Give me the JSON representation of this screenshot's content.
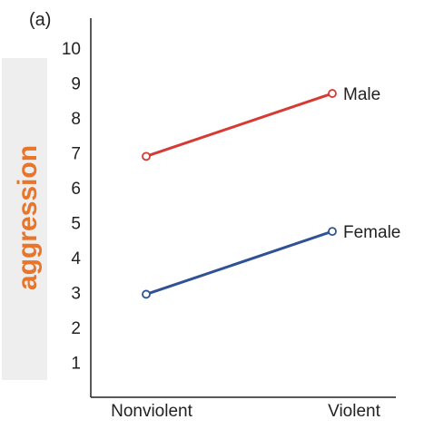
{
  "panel_label": "(a)",
  "chart_data": {
    "type": "line",
    "ylabel": "aggression",
    "xlabel": "",
    "categories": [
      "Nonviolent",
      "Violent"
    ],
    "ylim": [
      0,
      10
    ],
    "y_ticks": [
      "1",
      "2",
      "3",
      "4",
      "5",
      "6",
      "7",
      "8",
      "9",
      "10"
    ],
    "grid": false,
    "legend": "inline labels at line ends",
    "series": [
      {
        "name": "Male",
        "values": [
          6.9,
          8.7
        ],
        "color": "#d63a32"
      },
      {
        "name": "Female",
        "values": [
          2.95,
          4.75
        ],
        "color": "#2f5296"
      }
    ]
  },
  "colors": {
    "ylabel_panel": "#eeeeee",
    "ylabel_text": "#e8752a",
    "axis": "#222222"
  }
}
